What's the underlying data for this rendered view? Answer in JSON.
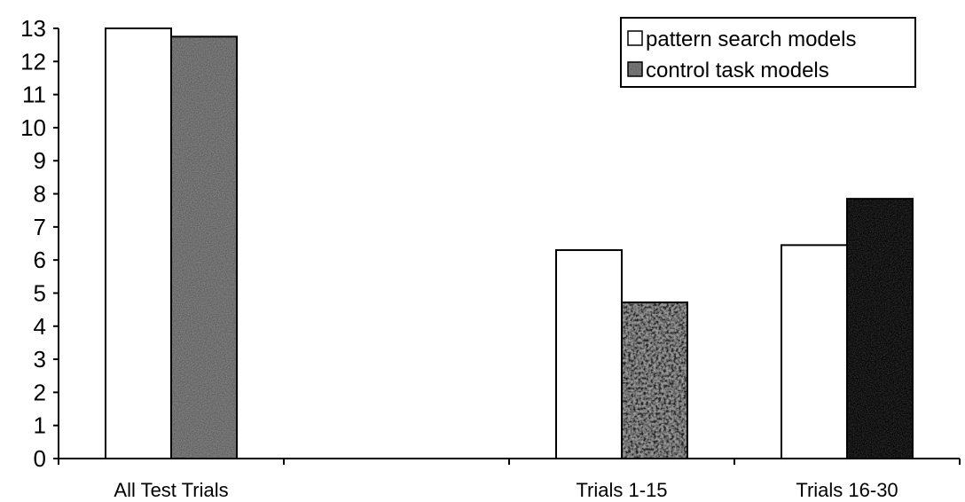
{
  "chart_data": {
    "type": "bar",
    "title": "",
    "xlabel": "",
    "ylabel": "",
    "ylim": [
      0,
      13
    ],
    "yticks": [
      0,
      1,
      2,
      3,
      4,
      5,
      6,
      7,
      8,
      9,
      10,
      11,
      12,
      13
    ],
    "grid": false,
    "legend_position": "top-right",
    "categories": [
      "All Test Trials",
      "",
      "Trials 1-15",
      "Trials 16-30"
    ],
    "series": [
      {
        "name": "pattern search models",
        "color": "#ffffff",
        "fill": "plain",
        "values": [
          13.0,
          null,
          6.3,
          6.45
        ]
      },
      {
        "name": "control task models",
        "color": "#8a8a8a",
        "fill": "textured",
        "values": [
          12.75,
          null,
          4.72,
          7.85
        ]
      }
    ],
    "bar_fill_variants": [
      "textured-grey",
      null,
      "mottled-grey",
      "solid-black"
    ]
  }
}
